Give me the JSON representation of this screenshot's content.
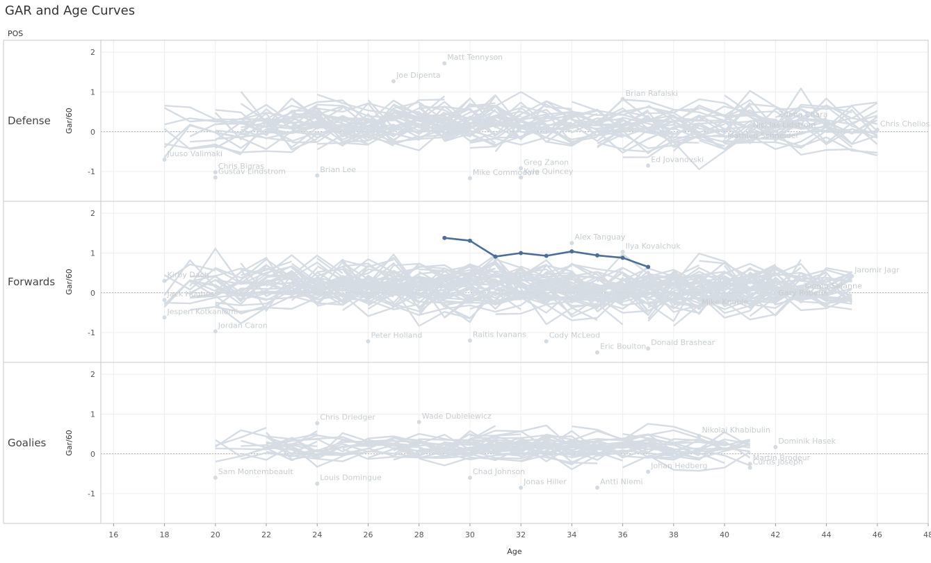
{
  "title": "GAR and Age Curves",
  "pos_header": "POS",
  "colors": {
    "background_lines": "#d3dbe3",
    "highlight": "#4b6d96",
    "axis": "#555555",
    "label": "#c8ccd0",
    "grid": "#eeeeee",
    "zero_line": "#aaaaaa"
  },
  "chart_data": {
    "type": "line",
    "xlabel": "Age",
    "ylabel": "Gar/60",
    "xlim": [
      15.5,
      48
    ],
    "ylim": [
      -1.75,
      2.3
    ],
    "x_ticks": [
      16,
      18,
      20,
      22,
      24,
      26,
      28,
      30,
      32,
      34,
      36,
      38,
      40,
      42,
      44,
      46,
      48
    ],
    "y_ticks": [
      -1,
      0,
      1,
      2
    ],
    "zero_reference_line": true,
    "panels": [
      {
        "name": "Defense",
        "player_labels": [
          {
            "name": "Matt Tennyson",
            "age": 29,
            "gar60": 1.72
          },
          {
            "name": "Joe Dipenta",
            "age": 27,
            "gar60": 1.27
          },
          {
            "name": "Brian Rafalski",
            "age": 36,
            "gar60": 0.82
          },
          {
            "name": "Zdeno Chara",
            "age": 42,
            "gar60": 0.28
          },
          {
            "name": "Nicklas Lidstrom",
            "age": 41,
            "gar60": 0.02
          },
          {
            "name": "Chris Chelios",
            "age": 46,
            "gar60": 0.05
          },
          {
            "name": "Mathieu Schneider",
            "age": 40,
            "gar60": -0.25
          },
          {
            "name": "Juuso Valimaki",
            "age": 18,
            "gar60": -0.7
          },
          {
            "name": "Chris Bigras",
            "age": 20,
            "gar60": -1.02
          },
          {
            "name": "Gustav Lindstrom",
            "age": 20,
            "gar60": -1.15
          },
          {
            "name": "Brian Lee",
            "age": 24,
            "gar60": -1.1
          },
          {
            "name": "Mike Commodore",
            "age": 30,
            "gar60": -1.17
          },
          {
            "name": "Greg Zanon",
            "age": 32,
            "gar60": -0.92
          },
          {
            "name": "Kyle Quincey",
            "age": 32,
            "gar60": -1.15
          },
          {
            "name": "Ed Jovanovski",
            "age": 37,
            "gar60": -0.85
          }
        ]
      },
      {
        "name": "Forwards",
        "player_labels": [
          {
            "name": "Alex Tanguay",
            "age": 34,
            "gar60": 1.25
          },
          {
            "name": "Ilya Kovalchuk",
            "age": 36,
            "gar60": 1.03
          },
          {
            "name": "Jaromir Jagr",
            "age": 45,
            "gar60": 0.42
          },
          {
            "name": "Teemu Selanne",
            "age": 43,
            "gar60": 0.02
          },
          {
            "name": "Gary Roberts",
            "age": 42,
            "gar60": -0.15
          },
          {
            "name": "Mike Knuble",
            "age": 39,
            "gar60": -0.38
          },
          {
            "name": "Kirby Dach",
            "age": 18,
            "gar60": 0.3
          },
          {
            "name": "Jack Hughes",
            "age": 18,
            "gar60": -0.18
          },
          {
            "name": "Jesperi Kotkaniemi",
            "age": 18,
            "gar60": -0.62
          },
          {
            "name": "Jordan Caron",
            "age": 20,
            "gar60": -0.97
          },
          {
            "name": "Peter Holland",
            "age": 26,
            "gar60": -1.22
          },
          {
            "name": "Raitis Ivanans",
            "age": 30,
            "gar60": -1.2
          },
          {
            "name": "Cody McLeod",
            "age": 33,
            "gar60": -1.22
          },
          {
            "name": "Eric Boulton",
            "age": 35,
            "gar60": -1.5
          },
          {
            "name": "Donald Brashear",
            "age": 37,
            "gar60": -1.4
          }
        ],
        "highlight_series": {
          "name": "Ilya Kovalchuk",
          "x": [
            29,
            30,
            31,
            32,
            33,
            34,
            35,
            36,
            37
          ],
          "y": [
            1.38,
            1.31,
            0.91,
            1.0,
            0.93,
            1.04,
            0.94,
            0.88,
            0.65
          ]
        }
      },
      {
        "name": "Goalies",
        "player_labels": [
          {
            "name": "Chris Driedger",
            "age": 24,
            "gar60": 0.77
          },
          {
            "name": "Wade Dubielewicz",
            "age": 28,
            "gar60": 0.8
          },
          {
            "name": "Nikolai Khabibulin",
            "age": 39,
            "gar60": 0.45
          },
          {
            "name": "Dominik Hasek",
            "age": 42,
            "gar60": 0.17
          },
          {
            "name": "Martin Brodeur",
            "age": 41,
            "gar60": -0.25
          },
          {
            "name": "Curtis Joseph",
            "age": 41,
            "gar60": -0.35
          },
          {
            "name": "Johan Hedberg",
            "age": 37,
            "gar60": -0.45
          },
          {
            "name": "Sam Montembeault",
            "age": 20,
            "gar60": -0.6
          },
          {
            "name": "Louis Domingue",
            "age": 24,
            "gar60": -0.75
          },
          {
            "name": "Chad Johnson",
            "age": 30,
            "gar60": -0.6
          },
          {
            "name": "Jonas Hiller",
            "age": 32,
            "gar60": -0.85
          },
          {
            "name": "Antti Niemi",
            "age": 35,
            "gar60": -0.85
          }
        ]
      }
    ]
  }
}
